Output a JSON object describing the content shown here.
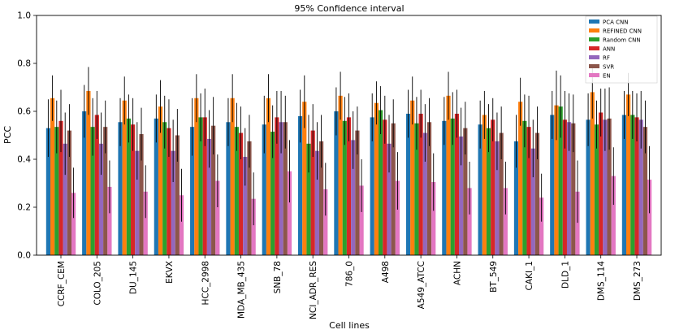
{
  "chart_data": {
    "type": "bar",
    "title": "95% Confidence interval",
    "xlabel": "Cell lines",
    "ylabel": "PCC",
    "ylim": [
      0,
      1
    ],
    "yticks": [
      "0.0",
      "0.2",
      "0.4",
      "0.6",
      "0.8",
      "1.0"
    ],
    "legend_position": "top-right",
    "categories": [
      "CCRF_CEM",
      "COLO_205",
      "DU_145",
      "EKVX",
      "HCC_2998",
      "MDA_MB_435",
      "SNB_78",
      "NCI_ADR_RES",
      "786_0",
      "A498",
      "A549_ATCC",
      "ACHN",
      "BT_549",
      "CAKI_1",
      "DLD_1",
      "DMS_114",
      "DMS_273"
    ],
    "series": [
      {
        "name": "PCA CNN",
        "color": "#1f77b4",
        "values": [
          0.53,
          0.6,
          0.555,
          0.57,
          0.535,
          0.555,
          0.545,
          0.58,
          0.6,
          0.575,
          0.59,
          0.56,
          0.545,
          0.475,
          0.585,
          0.565,
          0.585
        ],
        "err": [
          0.12,
          0.11,
          0.1,
          0.1,
          0.12,
          0.1,
          0.12,
          0.11,
          0.1,
          0.1,
          0.1,
          0.1,
          0.1,
          0.11,
          0.1,
          0.11,
          0.1
        ]
      },
      {
        "name": "REFINED CNN",
        "color": "#ff7f0e",
        "values": [
          0.655,
          0.685,
          0.645,
          0.62,
          0.655,
          0.655,
          0.655,
          0.64,
          0.665,
          0.635,
          0.645,
          0.665,
          0.585,
          0.64,
          0.625,
          0.68,
          0.67
        ],
        "err": [
          0.095,
          0.1,
          0.1,
          0.11,
          0.1,
          0.1,
          0.1,
          0.11,
          0.1,
          0.09,
          0.1,
          0.1,
          0.1,
          0.1,
          0.145,
          0.11,
          0.09
        ]
      },
      {
        "name": "Random CNN",
        "color": "#2ca02c",
        "values": [
          0.535,
          0.535,
          0.57,
          0.555,
          0.575,
          0.535,
          0.515,
          0.465,
          0.56,
          0.605,
          0.55,
          0.57,
          0.53,
          0.56,
          0.62,
          0.545,
          0.585
        ],
        "err": [
          0.11,
          0.12,
          0.1,
          0.11,
          0.1,
          0.1,
          0.11,
          0.12,
          0.1,
          0.1,
          0.11,
          0.11,
          0.1,
          0.11,
          0.13,
          0.1,
          0.1
        ]
      },
      {
        "name": "ANN",
        "color": "#d62728",
        "values": [
          0.56,
          0.585,
          0.545,
          0.53,
          0.575,
          0.51,
          0.575,
          0.52,
          0.575,
          0.565,
          0.59,
          0.59,
          0.565,
          0.535,
          0.565,
          0.595,
          0.575
        ],
        "err": [
          0.13,
          0.1,
          0.11,
          0.12,
          0.12,
          0.11,
          0.11,
          0.11,
          0.1,
          0.1,
          0.1,
          0.1,
          0.09,
          0.13,
          0.12,
          0.1,
          0.1
        ]
      },
      {
        "name": "RF",
        "color": "#9467bd",
        "values": [
          0.465,
          0.465,
          0.435,
          0.435,
          0.485,
          0.41,
          0.555,
          0.435,
          0.48,
          0.465,
          0.51,
          0.495,
          0.475,
          0.445,
          0.555,
          0.565,
          0.565
        ],
        "err": [
          0.13,
          0.13,
          0.12,
          0.13,
          0.12,
          0.12,
          0.13,
          0.12,
          0.12,
          0.12,
          0.12,
          0.12,
          0.12,
          0.12,
          0.12,
          0.13,
          0.12
        ]
      },
      {
        "name": "SVR",
        "color": "#8c564b",
        "values": [
          0.52,
          0.535,
          0.505,
          0.5,
          0.54,
          0.475,
          0.555,
          0.475,
          0.52,
          0.55,
          0.555,
          0.53,
          0.51,
          0.51,
          0.55,
          0.57,
          0.535
        ],
        "err": [
          0.11,
          0.11,
          0.11,
          0.11,
          0.12,
          0.11,
          0.11,
          0.11,
          0.1,
          0.1,
          0.1,
          0.11,
          0.11,
          0.11,
          0.12,
          0.13,
          0.11
        ]
      },
      {
        "name": "EN",
        "color": "#e377c2",
        "values": [
          0.26,
          0.285,
          0.265,
          0.25,
          0.31,
          0.235,
          0.35,
          0.275,
          0.29,
          0.31,
          0.305,
          0.28,
          0.28,
          0.24,
          0.265,
          0.33,
          0.315
        ],
        "err": [
          0.105,
          0.11,
          0.11,
          0.11,
          0.11,
          0.11,
          0.13,
          0.11,
          0.11,
          0.12,
          0.12,
          0.11,
          0.11,
          0.1,
          0.13,
          0.12,
          0.14
        ]
      }
    ]
  }
}
